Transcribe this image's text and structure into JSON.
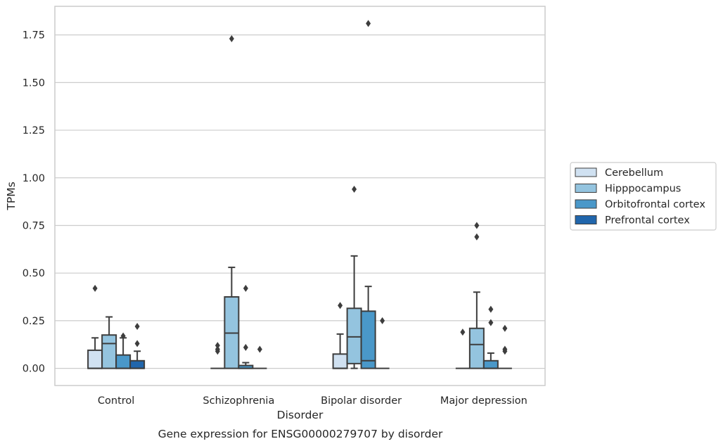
{
  "chart_data": {
    "type": "box",
    "title": "Gene expression for ENSG00000279707 by disorder",
    "xlabel": "Disorder",
    "ylabel": "TPMs",
    "ylim": [
      -0.09,
      1.9
    ],
    "yticks": [
      0.0,
      0.25,
      0.5,
      0.75,
      1.0,
      1.25,
      1.5,
      1.75
    ],
    "ytick_labels": [
      "0.00",
      "0.25",
      "0.50",
      "0.75",
      "1.00",
      "1.25",
      "1.50",
      "1.75"
    ],
    "grid": "horizontal",
    "legend_position": "right",
    "categories": [
      "Control",
      "Schizophrenia",
      "Bipolar disorder",
      "Major depression"
    ],
    "series": [
      {
        "name": "Cerebellum",
        "color": "#d0e1f1",
        "boxes": [
          {
            "q1": 0.0,
            "median": 0.0,
            "q3": 0.095,
            "whisker_low": 0.0,
            "whisker_high": 0.16,
            "outliers": [
              0.42
            ]
          },
          {
            "q1": 0.0,
            "median": 0.0,
            "q3": 0.0,
            "whisker_low": 0.0,
            "whisker_high": 0.0,
            "outliers": [
              0.12,
              0.1,
              0.09
            ]
          },
          {
            "q1": 0.0,
            "median": 0.0,
            "q3": 0.075,
            "whisker_low": 0.0,
            "whisker_high": 0.18,
            "outliers": [
              0.33
            ]
          },
          {
            "q1": 0.0,
            "median": 0.0,
            "q3": 0.0,
            "whisker_low": 0.0,
            "whisker_high": 0.0,
            "outliers": [
              0.19
            ]
          }
        ]
      },
      {
        "name": "Hipppocampus",
        "color": "#94c4df",
        "boxes": [
          {
            "q1": 0.0,
            "median": 0.13,
            "q3": 0.175,
            "whisker_low": 0.0,
            "whisker_high": 0.27,
            "outliers": []
          },
          {
            "q1": 0.0,
            "median": 0.185,
            "q3": 0.375,
            "whisker_low": 0.0,
            "whisker_high": 0.53,
            "outliers": [
              1.73
            ]
          },
          {
            "q1": 0.025,
            "median": 0.165,
            "q3": 0.315,
            "whisker_low": 0.0,
            "whisker_high": 0.59,
            "outliers": [
              0.94
            ]
          },
          {
            "q1": 0.0,
            "median": 0.125,
            "q3": 0.21,
            "whisker_low": 0.0,
            "whisker_high": 0.4,
            "outliers": [
              0.75,
              0.69
            ]
          }
        ]
      },
      {
        "name": "Orbitofrontal cortex",
        "color": "#4a98c9",
        "boxes": [
          {
            "q1": 0.0,
            "median": 0.0,
            "q3": 0.07,
            "whisker_low": 0.0,
            "whisker_high": 0.16,
            "outliers": [
              0.17
            ]
          },
          {
            "q1": 0.0,
            "median": 0.0,
            "q3": 0.015,
            "whisker_low": 0.0,
            "whisker_high": 0.03,
            "outliers": [
              0.42,
              0.11
            ]
          },
          {
            "q1": 0.0,
            "median": 0.04,
            "q3": 0.3,
            "whisker_low": 0.0,
            "whisker_high": 0.43,
            "outliers": [
              1.81
            ]
          },
          {
            "q1": 0.0,
            "median": 0.0,
            "q3": 0.04,
            "whisker_low": 0.0,
            "whisker_high": 0.08,
            "outliers": [
              0.31,
              0.24
            ]
          }
        ]
      },
      {
        "name": "Prefrontal cortex",
        "color": "#2166ac",
        "boxes": [
          {
            "q1": 0.0,
            "median": 0.0,
            "q3": 0.04,
            "whisker_low": 0.0,
            "whisker_high": 0.09,
            "outliers": [
              0.22,
              0.13
            ]
          },
          {
            "q1": 0.0,
            "median": 0.0,
            "q3": 0.0,
            "whisker_low": 0.0,
            "whisker_high": 0.0,
            "outliers": [
              0.1
            ]
          },
          {
            "q1": 0.0,
            "median": 0.0,
            "q3": 0.0,
            "whisker_low": 0.0,
            "whisker_high": 0.0,
            "outliers": [
              0.25
            ]
          },
          {
            "q1": 0.0,
            "median": 0.0,
            "q3": 0.0,
            "whisker_low": 0.0,
            "whisker_high": 0.0,
            "outliers": [
              0.21,
              0.1,
              0.09
            ]
          }
        ]
      }
    ]
  }
}
